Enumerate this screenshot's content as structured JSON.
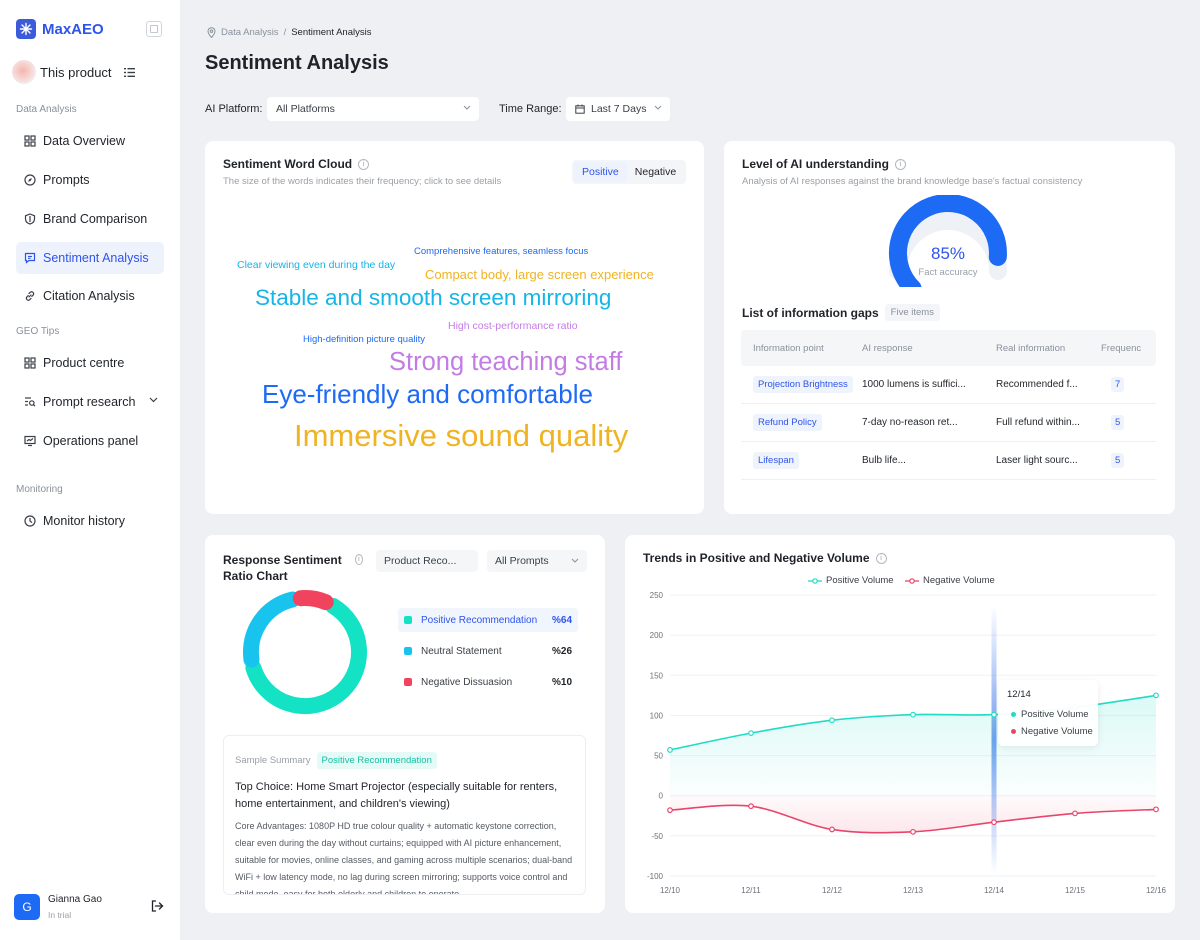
{
  "app": {
    "name": "MaxAEO"
  },
  "product": {
    "name": "This product"
  },
  "sidebar": {
    "sections": [
      {
        "label": "Data Analysis",
        "items": [
          {
            "label": "Data Overview",
            "icon": "grid-icon"
          },
          {
            "label": "Prompts",
            "icon": "compass-icon"
          },
          {
            "label": "Brand Comparison",
            "icon": "shield-icon"
          },
          {
            "label": "Sentiment Analysis",
            "icon": "chat-icon",
            "active": true
          },
          {
            "label": "Citation Analysis",
            "icon": "link-icon"
          }
        ]
      },
      {
        "label": "GEO Tips",
        "items": [
          {
            "label": "Product centre",
            "icon": "grid-icon"
          },
          {
            "label": "Prompt research",
            "icon": "search-list-icon"
          },
          {
            "label": "Operations panel",
            "icon": "monitor-icon"
          }
        ]
      },
      {
        "label": "Monitoring",
        "items": [
          {
            "label": "Monitor history",
            "icon": "clock-icon"
          }
        ]
      }
    ]
  },
  "user": {
    "initial": "G",
    "name": "Gianna Gao",
    "role": "In trial"
  },
  "breadcrumb": {
    "parent": "Data Analysis",
    "sep": "/",
    "current": "Sentiment Analysis"
  },
  "page": {
    "title": "Sentiment Analysis"
  },
  "filters": {
    "platform_label": "AI Platform:",
    "platform_value": "All Platforms",
    "time_label": "Time Range:",
    "time_value": "Last 7 Days"
  },
  "word_cloud": {
    "title": "Sentiment Word Cloud",
    "subtitle": "The size of the words indicates their frequency; click to see details",
    "tabs": [
      "Positive",
      "Negative"
    ],
    "active_tab": "Positive",
    "words": [
      {
        "text": "Comprehensive features, seamless focus",
        "color": "#1d6af5"
      },
      {
        "text": "Clear viewing even during the day",
        "color": "#17b3e6"
      },
      {
        "text": "Compact body, large screen experience",
        "color": "#f0b322"
      },
      {
        "text": "Stable and smooth screen mirroring",
        "color": "#16b5e8"
      },
      {
        "text": "High cost-performance ratio",
        "color": "#c47ce5"
      },
      {
        "text": "High-definition picture quality",
        "color": "#1d6af5"
      },
      {
        "text": "Strong teaching staff",
        "color": "#c47ce5"
      },
      {
        "text": "Eye-friendly and comfortable",
        "color": "#1d6af5"
      },
      {
        "text": "Immersive sound quality",
        "color": "#f0b322"
      }
    ]
  },
  "ai_understanding": {
    "title": "Level of AI understanding",
    "subtitle": "Analysis of AI responses against the brand knowledge base's factual consistency",
    "value": "85%",
    "fraction": 0.85,
    "label": "Fact accuracy",
    "gaps_title": "List of information gaps",
    "gaps_badge": "Five items",
    "columns": [
      "Information point",
      "AI response",
      "Real information",
      "Frequenc"
    ],
    "rows": [
      {
        "point": "Projection Brightness",
        "ai": "1000 lumens is suffici...",
        "real": "Recommended f...",
        "freq": "7"
      },
      {
        "point": "Refund Policy",
        "ai": "7-day no-reason ret...",
        "real": "Full refund within...",
        "freq": "5"
      },
      {
        "point": "Lifespan",
        "ai": "Bulb life...",
        "real": "Laser light sourc...",
        "freq": "5"
      }
    ]
  },
  "sentiment_ratio": {
    "title": "Response Sentiment Ratio Chart",
    "select1": "Product Reco...",
    "select2": "All Prompts",
    "segments": [
      {
        "label": "Positive Recommendation",
        "pct": "%64",
        "value": 64,
        "color": "#13e2c4"
      },
      {
        "label": "Neutral Statement",
        "pct": "%26",
        "value": 26,
        "color": "#18c4ee"
      },
      {
        "label": "Negative Dissuasion",
        "pct": "%10",
        "value": 10,
        "color": "#f0445e"
      }
    ],
    "summary_label": "Sample Summary",
    "summary_tag": "Positive Recommendation",
    "summary_title": "Top Choice: Home Smart Projector (especially suitable for renters, home entertainment, and children's viewing)",
    "summary_body": "Core Advantages: 1080P HD true colour quality + automatic keystone correction, clear even during the day without curtains; equipped with AI picture enhancement, suitable for movies, online classes, and gaming across multiple scenarios; dual-band WiFi + low latency mode, no lag during screen mirroring; supports voice control and child mode, easy for both elderly and children to operate."
  },
  "trends": {
    "title": "Trends in Positive and Negative Volume",
    "legend": [
      "Positive Volume",
      "Negative Volume"
    ],
    "tooltip_date": "12/14",
    "tooltip_items": [
      "Positive Volume",
      "Negative Volume"
    ]
  },
  "chart_data": {
    "type": "line",
    "x": [
      "12/10",
      "12/11",
      "12/12",
      "12/13",
      "12/14",
      "12/15",
      "12/16"
    ],
    "ylim": [
      -100,
      250
    ],
    "yticks": [
      250,
      200,
      150,
      100,
      50,
      0,
      -50,
      -100
    ],
    "series": [
      {
        "name": "Positive Volume",
        "color": "#21dcc4",
        "values": [
          57,
          78,
          94,
          101,
          101,
          110,
          125
        ]
      },
      {
        "name": "Negative Volume",
        "color": "#e8456b",
        "values": [
          -18,
          -13,
          -42,
          -45,
          -33,
          -22,
          -17
        ]
      }
    ],
    "highlight_x": "12/14",
    "legend": "top-center",
    "grid": true
  }
}
